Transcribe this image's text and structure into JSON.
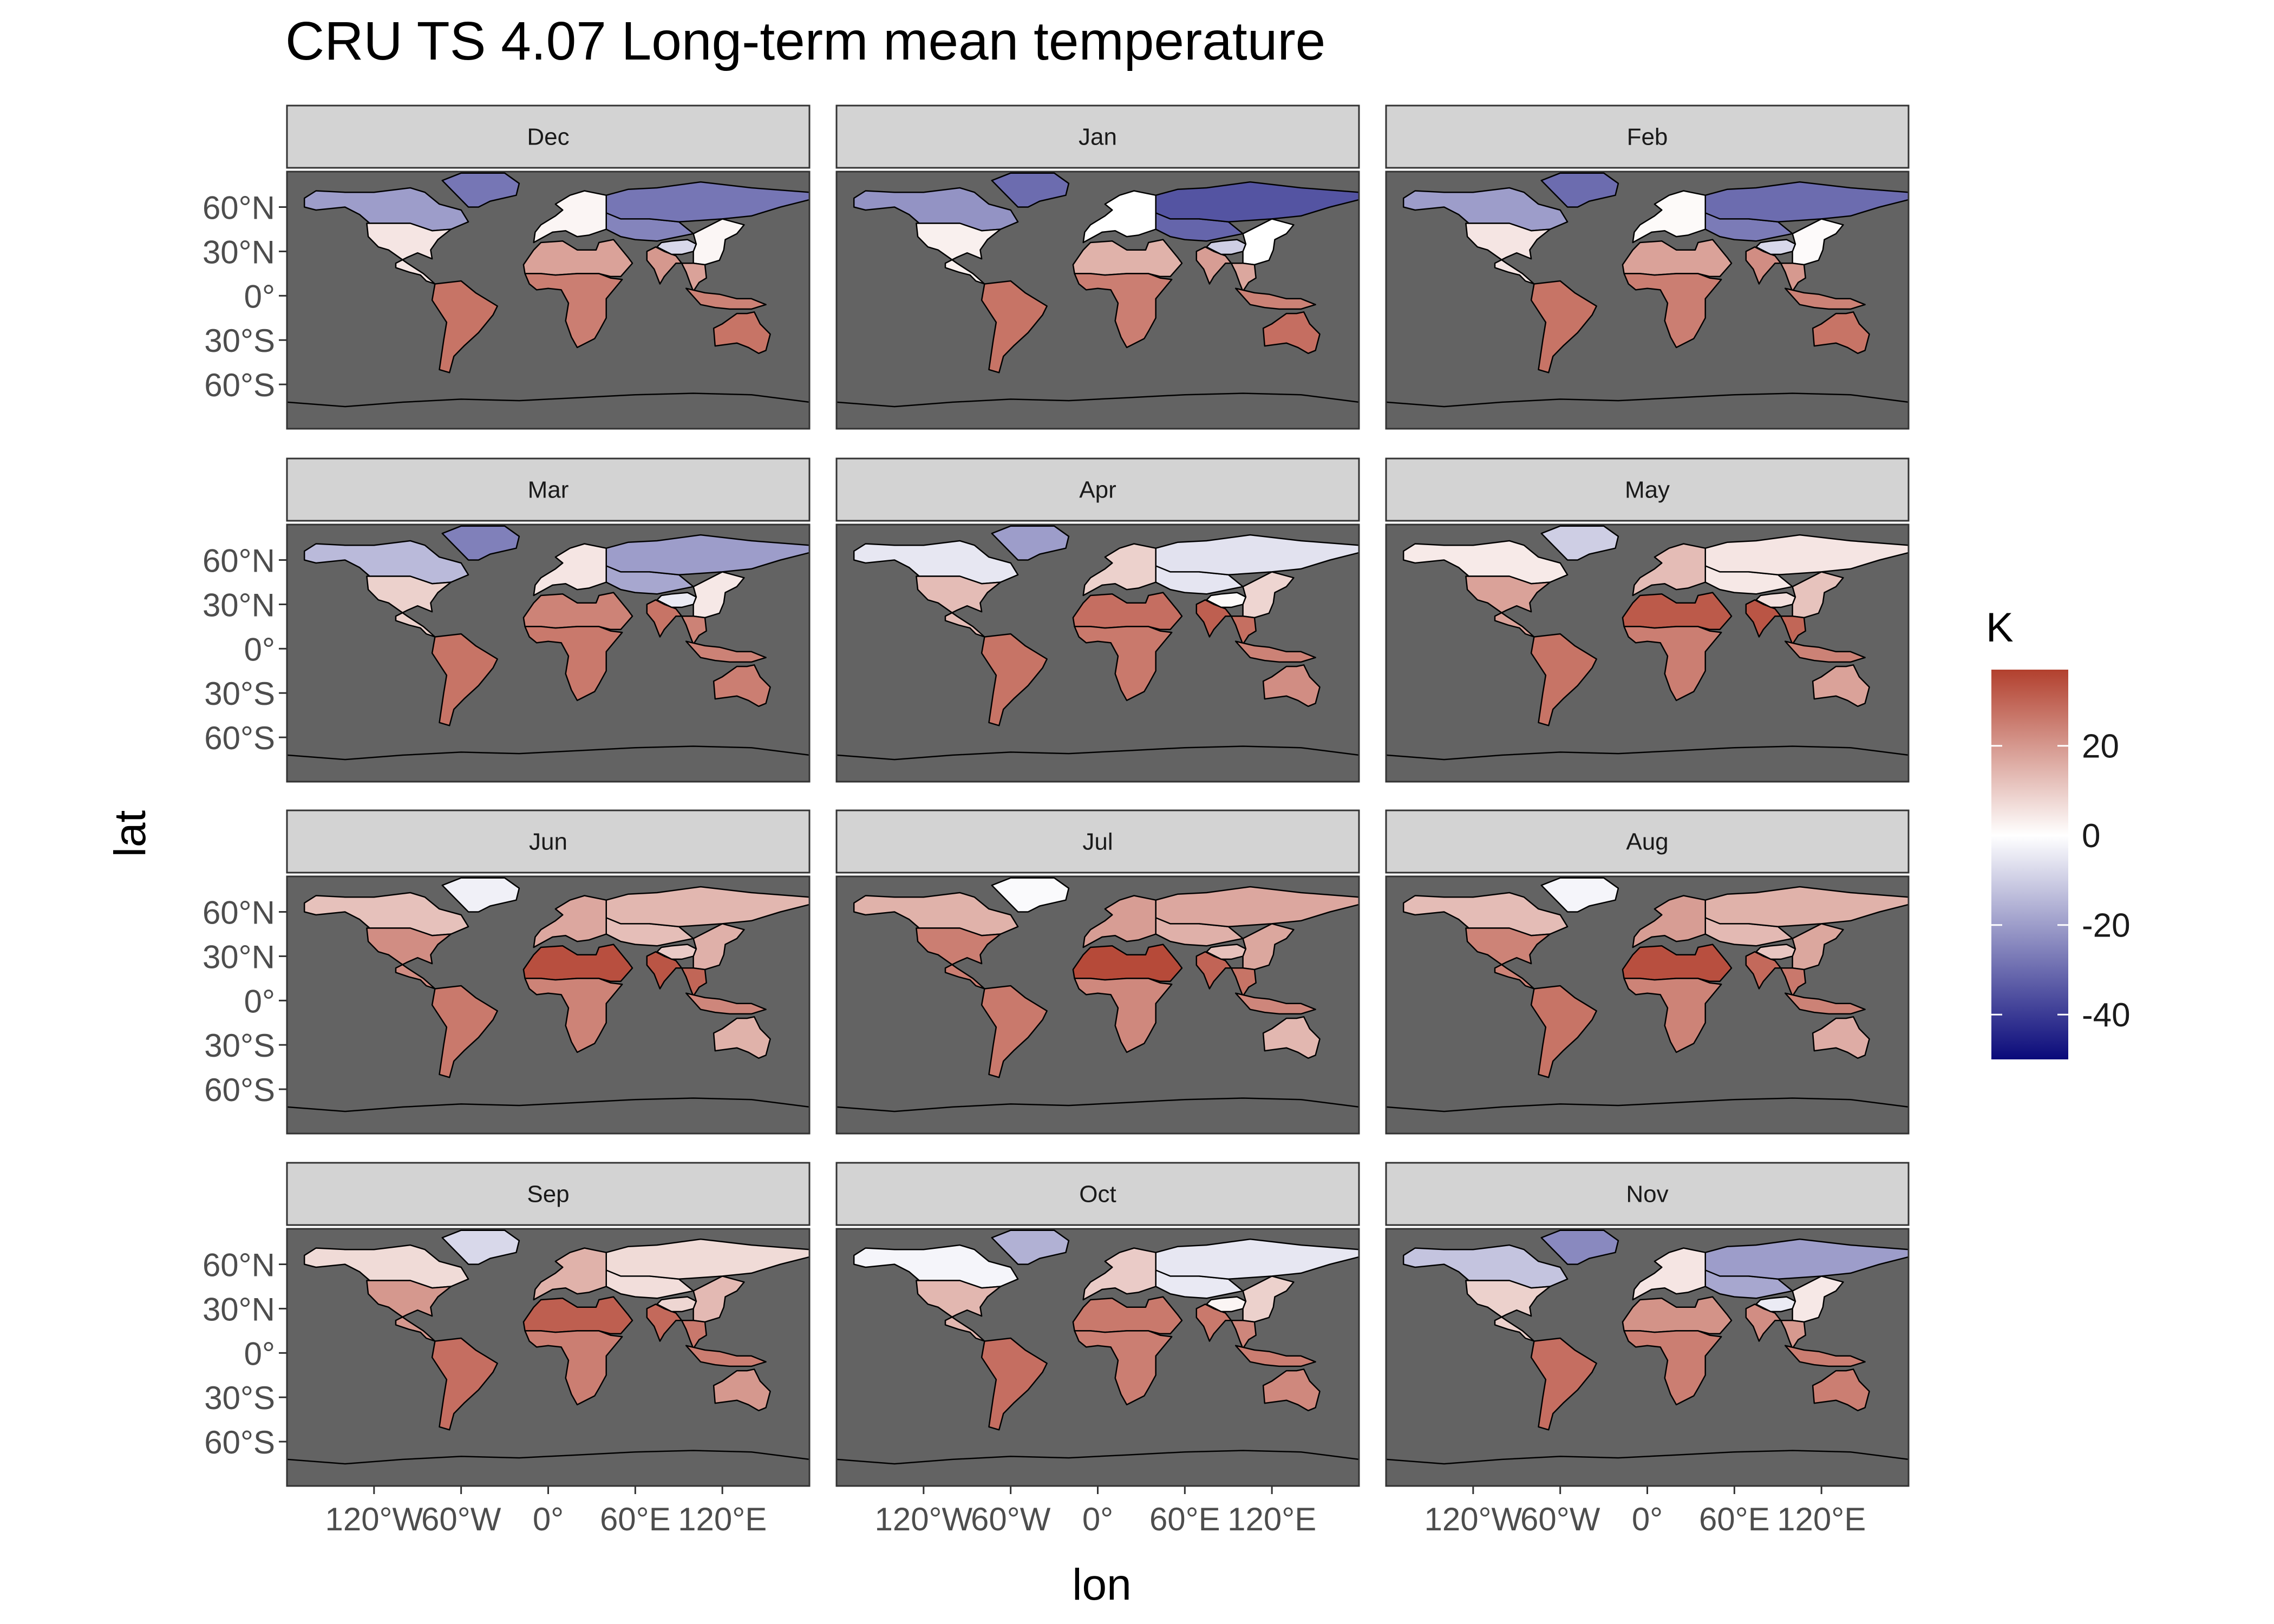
{
  "chart_data": {
    "type": "heatmap",
    "subtype": "faceted world map (raster, plate carree)",
    "title": "CRU TS 4.07 Long-term mean temperature",
    "xlabel": "lon",
    "ylabel": "lat",
    "facets": [
      "Dec",
      "Jan",
      "Feb",
      "Mar",
      "Apr",
      "May",
      "Jun",
      "Jul",
      "Aug",
      "Sep",
      "Oct",
      "Nov"
    ],
    "x_ticks": [
      {
        "value": -120,
        "label": "120°W"
      },
      {
        "value": -60,
        "label": "60°W"
      },
      {
        "value": 0,
        "label": "0°"
      },
      {
        "value": 60,
        "label": "60°E"
      },
      {
        "value": 120,
        "label": "120°E"
      }
    ],
    "y_ticks": [
      {
        "value": 60,
        "label": "60°N"
      },
      {
        "value": 30,
        "label": "30°N"
      },
      {
        "value": 0,
        "label": "0°"
      },
      {
        "value": -30,
        "label": "30°S"
      },
      {
        "value": -60,
        "label": "60°S"
      }
    ],
    "xlim": [
      -180,
      180
    ],
    "ylim": [
      -90,
      84
    ],
    "colorbar": {
      "title": "K",
      "range": [
        -50,
        37
      ],
      "ticks": [
        20,
        0,
        -20,
        -40
      ],
      "tick_labels": [
        "20",
        "0",
        "-20",
        "-40"
      ],
      "colors": {
        "low": "#0a0a7a",
        "mid": "#ffffff",
        "high": "#b2402e"
      },
      "placement": "right"
    },
    "panel_background": "#636363",
    "strip_background": "#d3d3d3",
    "grid": false,
    "approx_regional_means_K": {
      "region_order": [
        "Greenland",
        "Canada/Alaska",
        "Siberia",
        "USA",
        "Europe",
        "Sahara/Arabia",
        "India",
        "Amazonia",
        "Central Africa",
        "Australia",
        "Tibet"
      ],
      "Dec": [
        -28,
        -20,
        -28,
        5,
        2,
        18,
        20,
        27,
        25,
        27,
        -8
      ],
      "Jan": [
        -30,
        -22,
        -35,
        3,
        0,
        15,
        19,
        27,
        25,
        28,
        -10
      ],
      "Feb": [
        -30,
        -20,
        -30,
        5,
        1,
        18,
        22,
        27,
        25,
        27,
        -8
      ],
      "Mar": [
        -26,
        -14,
        -20,
        9,
        5,
        24,
        27,
        27,
        26,
        25,
        -4
      ],
      "Apr": [
        -20,
        -5,
        -6,
        13,
        9,
        28,
        31,
        27,
        26,
        22,
        1
      ],
      "May": [
        -10,
        4,
        5,
        18,
        13,
        32,
        33,
        27,
        25,
        18,
        6
      ],
      "Jun": [
        -3,
        12,
        14,
        22,
        17,
        34,
        33,
        26,
        24,
        15,
        10
      ],
      "Jul": [
        -1,
        15,
        17,
        25,
        19,
        35,
        30,
        26,
        23,
        14,
        12
      ],
      "Aug": [
        -2,
        13,
        15,
        24,
        19,
        34,
        29,
        27,
        24,
        16,
        11
      ],
      "Sep": [
        -8,
        7,
        7,
        20,
        15,
        31,
        29,
        28,
        25,
        20,
        8
      ],
      "Oct": [
        -16,
        -2,
        -5,
        14,
        10,
        26,
        26,
        28,
        25,
        23,
        2
      ],
      "Nov": [
        -24,
        -12,
        -20,
        9,
        5,
        21,
        22,
        28,
        25,
        25,
        -4
      ]
    }
  }
}
